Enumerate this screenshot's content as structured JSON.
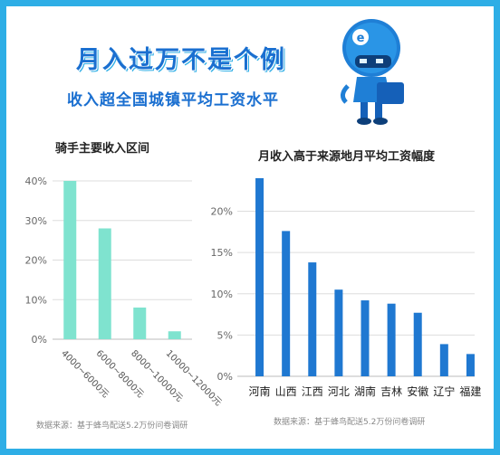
{
  "header": {
    "headline": "月入过万不是个例",
    "subheadline": "收入超全国城镇平均工资水平"
  },
  "colors": {
    "frame": "#2eaee6",
    "headline": "#1a6fd0",
    "left_bars": "#7fe3cf",
    "right_bars": "#1f78d1"
  },
  "icons": {
    "mascot": "robot-rider-icon"
  },
  "footer": {
    "source_left": "数据来源：基于蜂鸟配送5.2万份问卷调研",
    "source_right": "数据来源：基于蜂鸟配送5.2万份问卷调研"
  },
  "chart_data": [
    {
      "type": "bar",
      "title": "骑手主要收入区间",
      "categories": [
        "4000~6000元",
        "6000~8000元",
        "8000~10000元",
        "10000~12000元"
      ],
      "values": [
        40,
        28,
        8,
        2
      ],
      "ylim": [
        0,
        40
      ],
      "yticks": [
        "0%",
        "10%",
        "20%",
        "30%",
        "40%"
      ],
      "grid": true,
      "legend": "none"
    },
    {
      "type": "bar",
      "title": "月收入高于来源地月平均工资幅度",
      "categories": [
        "河南",
        "山西",
        "江西",
        "河北",
        "湖南",
        "吉林",
        "安徽",
        "辽宁",
        "福建"
      ],
      "values": [
        24,
        17.6,
        13.8,
        10.5,
        9.2,
        8.8,
        7.7,
        3.9,
        2.7
      ],
      "ylim": [
        0,
        24
      ],
      "yticks": [
        "0%",
        "5%",
        "10%",
        "15%",
        "20%"
      ],
      "grid": true,
      "legend": "none"
    }
  ]
}
